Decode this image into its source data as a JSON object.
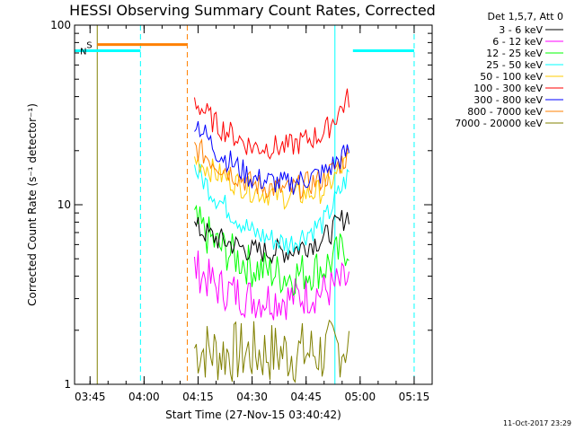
{
  "chart_data": {
    "type": "line",
    "title": "HESSI Observing Summary Count Rates, Corrected",
    "xlabel": "Start Time (27-Nov-15 03:40:42)",
    "ylabel": "Corrected Count Rate (s⁻¹ detector⁻¹)",
    "y_scale": "log",
    "ylim": [
      1,
      100
    ],
    "y_ticks": [
      {
        "value": 1,
        "label": "1"
      },
      {
        "value": 10,
        "label": "10"
      },
      {
        "value": 100,
        "label": "100"
      }
    ],
    "xlim": [
      "03:40:42",
      "05:20:00"
    ],
    "x_ticks": [
      {
        "value": "03:45",
        "label": "03:45"
      },
      {
        "value": "04:00",
        "label": "04:00"
      },
      {
        "value": "04:15",
        "label": "04:15"
      },
      {
        "value": "04:30",
        "label": "04:30"
      },
      {
        "value": "04:45",
        "label": "04:45"
      },
      {
        "value": "04:60",
        "label": "05:00"
      },
      {
        "value": "05:15",
        "label": "05:15"
      }
    ],
    "legend_header": "Det 1,5,7, Att 0",
    "legend_position": "top-right, outside plot",
    "grid": false,
    "series": [
      {
        "name": "3 - 6 keV",
        "color": "#000000",
        "x": [
          "04:14",
          "04:20",
          "04:30",
          "04:40",
          "04:50",
          "04:57"
        ],
        "values": [
          7.5,
          6.5,
          5.5,
          5.5,
          6.5,
          9.0
        ]
      },
      {
        "name": "6 - 12 keV",
        "color": "#ff00ff",
        "x": [
          "04:14",
          "04:20",
          "04:30",
          "04:40",
          "04:50",
          "04:57"
        ],
        "values": [
          4.5,
          3.5,
          3.0,
          3.0,
          3.3,
          3.8
        ]
      },
      {
        "name": "12 - 25 keV",
        "color": "#00ff00",
        "x": [
          "04:14",
          "04:20",
          "04:30",
          "04:40",
          "04:50",
          "04:57"
        ],
        "values": [
          8.0,
          6.0,
          4.5,
          4.0,
          4.5,
          6.0
        ]
      },
      {
        "name": "25 - 50 keV",
        "color": "#00ffff",
        "x": [
          "04:14",
          "04:20",
          "04:30",
          "04:40",
          "04:50",
          "04:57"
        ],
        "values": [
          16.0,
          11.0,
          7.0,
          6.0,
          8.0,
          15.0
        ]
      },
      {
        "name": "50 - 100 keV",
        "color": "#ffcc00",
        "x": [
          "04:14",
          "04:20",
          "04:30",
          "04:40",
          "04:50",
          "04:57"
        ],
        "values": [
          18.0,
          15.0,
          12.0,
          11.0,
          12.0,
          18.0
        ]
      },
      {
        "name": "100 - 300 keV",
        "color": "#ff0000",
        "x": [
          "04:14",
          "04:20",
          "04:30",
          "04:40",
          "04:50",
          "04:57"
        ],
        "values": [
          38.0,
          28.0,
          21.0,
          21.0,
          25.0,
          40.0
        ]
      },
      {
        "name": "300 - 800 keV",
        "color": "#0000ff",
        "x": [
          "04:14",
          "04:20",
          "04:30",
          "04:40",
          "04:50",
          "04:57"
        ],
        "values": [
          30.0,
          20.0,
          14.0,
          13.0,
          15.0,
          20.0
        ]
      },
      {
        "name": "800 - 7000 keV",
        "color": "#ff8000",
        "x": [
          "04:14",
          "04:20",
          "04:30",
          "04:40",
          "04:50",
          "04:57"
        ],
        "values": [
          21.0,
          17.0,
          13.0,
          12.0,
          14.0,
          19.0
        ]
      },
      {
        "name": "7000 - 20000 keV",
        "color": "#808000",
        "x": [
          "04:14",
          "04:20",
          "04:30",
          "04:40",
          "04:50",
          "04:57"
        ],
        "values": [
          1.6,
          1.5,
          1.5,
          1.5,
          1.5,
          1.7
        ]
      }
    ],
    "flag_bars": [
      {
        "label": "S",
        "color": "#ff8000",
        "x_start": "03:47",
        "x_end": "04:12",
        "value": 78
      },
      {
        "label": "N",
        "color": "#00ffff",
        "x_start": "03:40:42",
        "x_end": "03:59",
        "value": 72
      },
      {
        "label": "",
        "color": "#00ffff",
        "x_start": "04:58",
        "x_end": "05:15",
        "value": 72
      }
    ],
    "vertical_markers": [
      {
        "x": "03:47",
        "color": "#808000",
        "style": "solid"
      },
      {
        "x": "03:59",
        "color": "#00ffff",
        "style": "dashed"
      },
      {
        "x": "04:12",
        "color": "#ff8000",
        "style": "dashed"
      },
      {
        "x": "04:53",
        "color": "#00ffff",
        "style": "solid"
      },
      {
        "x": "05:15",
        "color": "#00ffff",
        "style": "dashed"
      }
    ]
  },
  "timestamp": "11-Oct-2017 23:29"
}
